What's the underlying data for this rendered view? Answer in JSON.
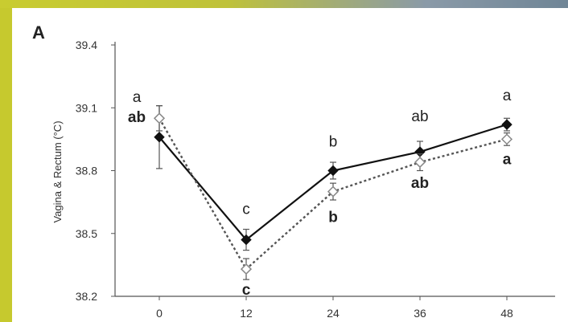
{
  "chart_data": {
    "type": "line",
    "panel_label": "A",
    "xlabel": "",
    "ylabel": "Vagina & Rectum (°C)",
    "x": [
      0,
      12,
      24,
      36,
      48
    ],
    "x_tick_labels": [
      "0",
      "12",
      "24",
      "36",
      "48"
    ],
    "y_tick_labels": [
      "38.2",
      "38.5",
      "38.8",
      "39.1",
      "39.4"
    ],
    "ylim": [
      38.2,
      39.4
    ],
    "grid": false,
    "series": [
      {
        "style": "solid",
        "marker": "filled-diamond",
        "color": "#111111",
        "values": [
          38.96,
          38.47,
          38.8,
          38.89,
          39.02
        ],
        "errors": [
          0.15,
          0.05,
          0.04,
          0.05,
          0.03
        ],
        "letters": [
          "ab",
          "c",
          "b",
          "ab",
          "a"
        ]
      },
      {
        "style": "dotted",
        "marker": "open-diamond",
        "color": "#555555",
        "values": [
          39.05,
          38.33,
          38.7,
          38.84,
          38.95
        ],
        "errors": [
          0.06,
          0.05,
          0.04,
          0.04,
          0.03
        ],
        "letters": [
          "a",
          "c",
          "b",
          "ab",
          "a"
        ]
      }
    ]
  }
}
